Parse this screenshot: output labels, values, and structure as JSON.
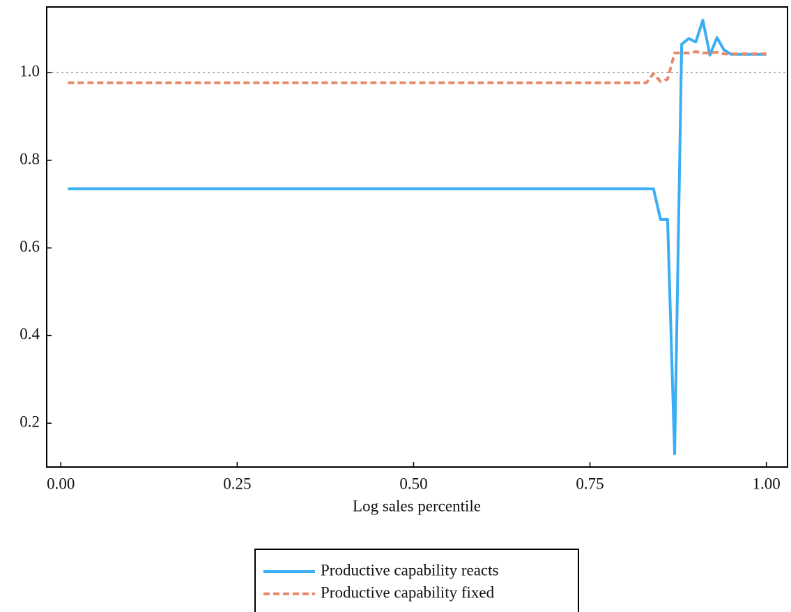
{
  "chart_data": {
    "type": "line",
    "xlabel": "Log sales percentile",
    "xlim": [
      -0.02,
      1.03
    ],
    "ylim": [
      0.1,
      1.15
    ],
    "xticks": [
      {
        "value": 0,
        "label": "0.00"
      },
      {
        "value": 0.25,
        "label": "0.25"
      },
      {
        "value": 0.5,
        "label": "0.50"
      },
      {
        "value": 0.75,
        "label": "0.75"
      },
      {
        "value": 1,
        "label": "1.00"
      }
    ],
    "yticks": [
      0.2,
      0.4,
      0.6,
      0.8,
      {
        "value": 1,
        "label": "1.0"
      }
    ],
    "reference_line": {
      "y": 1,
      "color": "#999999"
    },
    "legend": "bottom",
    "x": [
      0.01,
      0.02,
      0.03,
      0.04,
      0.05,
      0.06,
      0.07,
      0.08,
      0.09,
      0.1,
      0.11,
      0.12,
      0.13,
      0.14,
      0.15,
      0.16,
      0.17,
      0.18,
      0.19,
      0.2,
      0.21,
      0.22,
      0.23,
      0.24,
      0.25,
      0.26,
      0.27,
      0.28,
      0.29,
      0.3,
      0.31,
      0.32,
      0.33,
      0.34,
      0.35,
      0.36,
      0.37,
      0.38,
      0.39,
      0.4,
      0.41,
      0.42,
      0.43,
      0.44,
      0.45,
      0.46,
      0.47,
      0.48,
      0.49,
      0.5,
      0.51,
      0.52,
      0.53,
      0.54,
      0.55,
      0.56,
      0.57,
      0.58,
      0.59,
      0.6,
      0.61,
      0.62,
      0.63,
      0.64,
      0.65,
      0.66,
      0.67,
      0.68,
      0.69,
      0.7,
      0.71,
      0.72,
      0.73,
      0.74,
      0.75,
      0.76,
      0.77,
      0.78,
      0.79,
      0.8,
      0.81,
      0.82,
      0.83,
      0.84,
      0.85,
      0.86,
      0.87,
      0.88,
      0.89,
      0.9,
      0.91,
      0.92,
      0.93,
      0.94,
      0.95,
      0.96,
      0.97,
      0.98,
      0.99,
      1.0
    ],
    "series": [
      {
        "name": "Productive capability reacts",
        "color": "#3aaef5",
        "dashed": false,
        "values": [
          0.735,
          0.735,
          0.735,
          0.735,
          0.735,
          0.735,
          0.735,
          0.735,
          0.735,
          0.735,
          0.735,
          0.735,
          0.735,
          0.735,
          0.735,
          0.735,
          0.735,
          0.735,
          0.735,
          0.735,
          0.735,
          0.735,
          0.735,
          0.735,
          0.735,
          0.735,
          0.735,
          0.735,
          0.735,
          0.735,
          0.735,
          0.735,
          0.735,
          0.735,
          0.735,
          0.735,
          0.735,
          0.735,
          0.735,
          0.735,
          0.735,
          0.735,
          0.735,
          0.735,
          0.735,
          0.735,
          0.735,
          0.735,
          0.735,
          0.735,
          0.735,
          0.735,
          0.735,
          0.735,
          0.735,
          0.735,
          0.735,
          0.735,
          0.735,
          0.735,
          0.735,
          0.735,
          0.735,
          0.735,
          0.735,
          0.735,
          0.735,
          0.735,
          0.735,
          0.735,
          0.735,
          0.735,
          0.735,
          0.735,
          0.735,
          0.735,
          0.735,
          0.735,
          0.735,
          0.735,
          0.735,
          0.735,
          0.735,
          0.735,
          0.665,
          0.665,
          0.13,
          1.065,
          1.078,
          1.07,
          1.12,
          1.04,
          1.08,
          1.052,
          1.042,
          1.042,
          1.042,
          1.042,
          1.042,
          1.042
        ]
      },
      {
        "name": "Productive capability fixed",
        "color": "#e8896a",
        "dashed": true,
        "values": [
          0.977,
          0.977,
          0.977,
          0.977,
          0.977,
          0.977,
          0.977,
          0.977,
          0.977,
          0.977,
          0.977,
          0.977,
          0.977,
          0.977,
          0.977,
          0.977,
          0.977,
          0.977,
          0.977,
          0.977,
          0.977,
          0.977,
          0.977,
          0.977,
          0.977,
          0.977,
          0.977,
          0.977,
          0.977,
          0.977,
          0.977,
          0.977,
          0.977,
          0.977,
          0.977,
          0.977,
          0.977,
          0.977,
          0.977,
          0.977,
          0.977,
          0.977,
          0.977,
          0.977,
          0.977,
          0.977,
          0.977,
          0.977,
          0.977,
          0.977,
          0.977,
          0.977,
          0.977,
          0.977,
          0.977,
          0.977,
          0.977,
          0.977,
          0.977,
          0.977,
          0.977,
          0.977,
          0.977,
          0.977,
          0.977,
          0.977,
          0.977,
          0.977,
          0.977,
          0.977,
          0.977,
          0.977,
          0.977,
          0.977,
          0.977,
          0.977,
          0.977,
          0.977,
          0.977,
          0.977,
          0.977,
          0.977,
          0.977,
          0.998,
          0.98,
          0.985,
          1.045,
          1.045,
          1.045,
          1.048,
          1.045,
          1.045,
          1.047,
          1.043,
          1.043,
          1.043,
          1.043,
          1.043,
          1.043,
          1.043
        ]
      }
    ]
  }
}
